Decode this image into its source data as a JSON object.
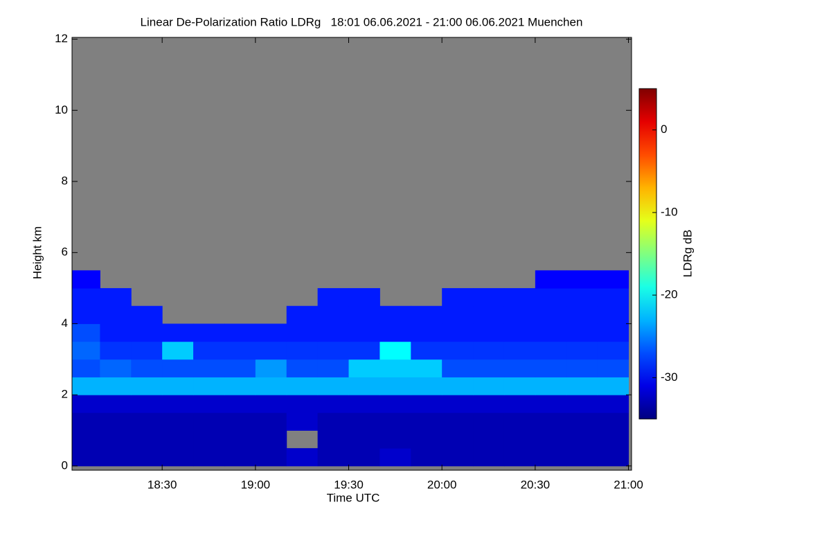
{
  "chart_data": {
    "type": "heatmap",
    "title": "Linear De-Polarization Ratio LDRg   18:01 06.06.2021 - 21:00 06.06.2021 Muenchen",
    "x_label": "Time UTC",
    "y_label": "Height km",
    "colorbar_label": "LDRg dB",
    "xlim": [
      1081,
      1261
    ],
    "ylim": [
      -0.12,
      12.05
    ],
    "xticks": [
      {
        "value": 1110,
        "label": "18:30"
      },
      {
        "value": 1140,
        "label": "19:00"
      },
      {
        "value": 1170,
        "label": "19:30"
      },
      {
        "value": 1200,
        "label": "20:00"
      },
      {
        "value": 1230,
        "label": "20:30"
      },
      {
        "value": 1260,
        "label": "21:00"
      }
    ],
    "yticks": [
      0,
      2,
      4,
      6,
      8,
      10,
      12
    ],
    "colormap": "jet",
    "missing_color": "#808080",
    "zlim": [
      -35,
      5
    ],
    "zticks": [
      -30,
      -20,
      -10,
      0
    ],
    "xbins": [
      1081,
      1090,
      1100,
      1110,
      1120,
      1130,
      1140,
      1150,
      1160,
      1170,
      1180,
      1190,
      1200,
      1210,
      1220,
      1230,
      1240,
      1250,
      1260
    ],
    "ybins": [
      0,
      0.5,
      1,
      1.5,
      2,
      2.5,
      3,
      3.5,
      4,
      4.5,
      5,
      5.5,
      6
    ],
    "z": [
      [
        -33,
        -33,
        -33,
        -33,
        -33,
        -33,
        -33,
        -32,
        -33,
        -33,
        -32,
        -33,
        -33,
        -33,
        -33,
        -33,
        -33,
        -33
      ],
      [
        -33,
        -33,
        -33,
        -33,
        -33,
        -33,
        -33,
        null,
        -33,
        -33,
        -33,
        -33,
        -33,
        -33,
        -33,
        -33,
        -33,
        -33
      ],
      [
        -33,
        -33,
        -33,
        -33,
        -33,
        -33,
        -33,
        -32,
        -33,
        -33,
        -33,
        -33,
        -33,
        -33,
        -33,
        -33,
        -33,
        -33
      ],
      [
        -32,
        -32,
        -32,
        -32,
        -32,
        -32,
        -32,
        -32,
        -32,
        -32,
        -32,
        -32,
        -32,
        -32,
        -32,
        -32,
        -32,
        -32
      ],
      [
        -23,
        -23,
        -23,
        -23,
        -23,
        -23,
        -23,
        -23,
        -23,
        -23,
        -23,
        -23,
        -23,
        -23,
        -23,
        -23,
        -23,
        -23
      ],
      [
        -27,
        -26,
        -27,
        -27,
        -27,
        -27,
        -24,
        -27,
        -27,
        -22,
        -22,
        -22,
        -27,
        -27,
        -27,
        -27,
        -27,
        -27
      ],
      [
        -26,
        -28,
        -28,
        -22,
        -28,
        -28,
        -28,
        -28,
        -28,
        -28,
        -20,
        -28,
        -28,
        -28,
        -28,
        -28,
        -28,
        -28
      ],
      [
        -27,
        -29,
        -29,
        -29,
        -29,
        -29,
        -29,
        -29,
        -29,
        -29,
        -29,
        -29,
        -29,
        -29,
        -29,
        -29,
        -29,
        -29
      ],
      [
        -29,
        -29,
        -29,
        null,
        null,
        null,
        null,
        -29,
        -29,
        -29,
        -29,
        -29,
        -29,
        -29,
        -29,
        -29,
        -29,
        -29
      ],
      [
        -29,
        -29,
        null,
        null,
        null,
        null,
        null,
        null,
        -29,
        -29,
        null,
        null,
        -29,
        -29,
        -29,
        -29,
        -29,
        -29
      ],
      [
        -30,
        null,
        null,
        null,
        null,
        null,
        null,
        null,
        null,
        null,
        null,
        null,
        null,
        null,
        null,
        -30,
        -30,
        -30
      ],
      [
        null,
        null,
        null,
        null,
        null,
        null,
        null,
        null,
        null,
        null,
        null,
        null,
        null,
        null,
        null,
        null,
        null,
        null
      ]
    ]
  }
}
